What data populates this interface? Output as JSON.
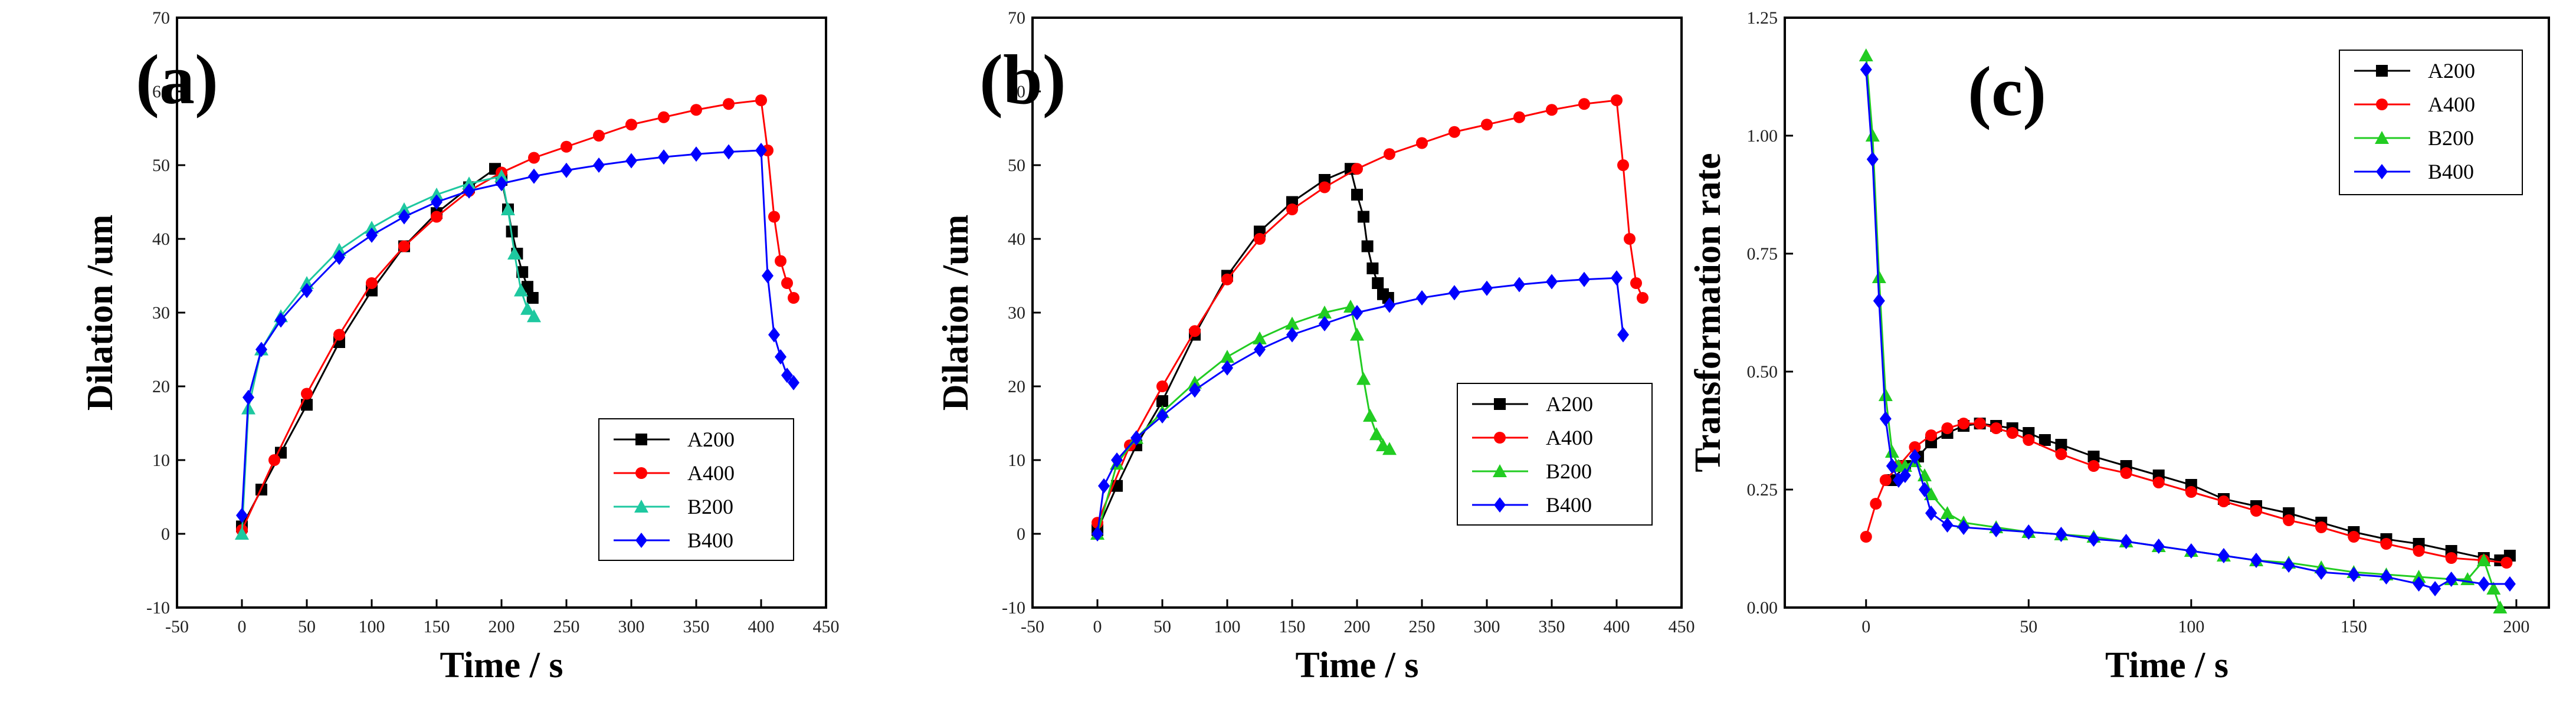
{
  "chart_data": [
    {
      "type": "line",
      "panel_label": "(a)",
      "xlabel": "Time / s",
      "ylabel": "Dilation /um",
      "xlim": [
        -50,
        450
      ],
      "ylim": [
        -10,
        70
      ],
      "xticks": [
        "-50",
        "0",
        "50",
        "100",
        "150",
        "200",
        "250",
        "300",
        "350",
        "400",
        "450"
      ],
      "yticks": [
        "-10",
        "0",
        "10",
        "20",
        "30",
        "40",
        "50",
        "60",
        "70"
      ],
      "legend_position": "bottom-right",
      "series": [
        {
          "name": "A200",
          "color": "#000000",
          "marker": "square",
          "x": [
            0,
            15,
            30,
            50,
            75,
            100,
            125,
            150,
            175,
            195,
            200,
            205,
            208,
            212,
            216,
            220,
            224
          ],
          "y": [
            1,
            6,
            11,
            17.5,
            26,
            33,
            39,
            43.5,
            47,
            49.5,
            48,
            44,
            41,
            38,
            35.5,
            33.5,
            32
          ]
        },
        {
          "name": "A400",
          "color": "#ff0000",
          "marker": "circle",
          "x": [
            0,
            25,
            50,
            75,
            100,
            125,
            150,
            175,
            200,
            225,
            250,
            275,
            300,
            325,
            350,
            375,
            400,
            405,
            410,
            415,
            420,
            425
          ],
          "y": [
            0.5,
            10,
            19,
            27,
            34,
            39,
            43,
            46.5,
            49,
            51,
            52.5,
            54,
            55.5,
            56.5,
            57.5,
            58.3,
            58.8,
            52,
            43,
            37,
            34,
            32
          ]
        },
        {
          "name": "B200",
          "color": "#1ec8a0",
          "marker": "triangle",
          "x": [
            0,
            5,
            15,
            30,
            50,
            75,
            100,
            125,
            150,
            175,
            200,
            205,
            210,
            215,
            220,
            225
          ],
          "y": [
            0,
            17,
            25,
            29.5,
            34,
            38.5,
            41.5,
            44,
            46,
            47.5,
            48.5,
            44,
            38,
            33,
            30.5,
            29.5
          ]
        },
        {
          "name": "B400",
          "color": "#0000ff",
          "marker": "diamond",
          "x": [
            0,
            5,
            15,
            30,
            50,
            75,
            100,
            125,
            150,
            175,
            200,
            225,
            250,
            275,
            300,
            325,
            350,
            375,
            400,
            405,
            410,
            415,
            420,
            425
          ],
          "y": [
            2.5,
            18.5,
            25,
            29,
            33,
            37.5,
            40.5,
            43,
            45,
            46.5,
            47.5,
            48.5,
            49.3,
            50,
            50.6,
            51.1,
            51.5,
            51.8,
            52,
            35,
            27,
            24,
            21.5,
            20.5
          ]
        }
      ]
    },
    {
      "type": "line",
      "panel_label": "(b)",
      "xlabel": "Time / s",
      "ylabel": "Dilation /um",
      "xlim": [
        -50,
        450
      ],
      "ylim": [
        -10,
        70
      ],
      "xticks": [
        "-50",
        "0",
        "50",
        "100",
        "150",
        "200",
        "250",
        "300",
        "350",
        "400",
        "450"
      ],
      "yticks": [
        "-10",
        "0",
        "10",
        "20",
        "30",
        "40",
        "50",
        "60",
        "70"
      ],
      "legend_position": "bottom-right",
      "series": [
        {
          "name": "A200",
          "color": "#000000",
          "marker": "square",
          "x": [
            0,
            15,
            30,
            50,
            75,
            100,
            125,
            150,
            175,
            195,
            200,
            205,
            208,
            212,
            216,
            220,
            224
          ],
          "y": [
            0.5,
            6.5,
            12,
            18,
            27,
            35,
            41,
            45,
            48,
            49.5,
            46,
            43,
            39,
            36,
            34,
            32.5,
            32
          ]
        },
        {
          "name": "A400",
          "color": "#ff0000",
          "marker": "circle",
          "x": [
            0,
            25,
            50,
            75,
            100,
            125,
            150,
            175,
            200,
            225,
            250,
            275,
            300,
            325,
            350,
            375,
            400,
            405,
            410,
            415,
            420
          ],
          "y": [
            1.5,
            12,
            20,
            27.5,
            34.5,
            40,
            44,
            47,
            49.5,
            51.5,
            53,
            54.5,
            55.5,
            56.5,
            57.5,
            58.3,
            58.8,
            50,
            40,
            34,
            32
          ]
        },
        {
          "name": "B200",
          "color": "#22cc22",
          "marker": "triangle",
          "x": [
            0,
            15,
            30,
            50,
            75,
            100,
            125,
            150,
            175,
            195,
            200,
            205,
            210,
            215,
            220,
            225
          ],
          "y": [
            0,
            9.5,
            13,
            16.5,
            20.5,
            24,
            26.5,
            28.5,
            30,
            30.8,
            27,
            21,
            16,
            13.5,
            12,
            11.5
          ]
        },
        {
          "name": "B400",
          "color": "#0000ff",
          "marker": "diamond",
          "x": [
            0,
            5,
            15,
            30,
            50,
            75,
            100,
            125,
            150,
            175,
            200,
            225,
            250,
            275,
            300,
            325,
            350,
            375,
            400,
            405
          ],
          "y": [
            0,
            6.5,
            10,
            13,
            16,
            19.5,
            22.5,
            25,
            27,
            28.5,
            30,
            31,
            32,
            32.7,
            33.3,
            33.8,
            34.2,
            34.5,
            34.7,
            27
          ]
        }
      ]
    },
    {
      "type": "line",
      "panel_label": "(c)",
      "xlabel": "Time / s",
      "ylabel": "Transformation rate",
      "xlim": [
        -25,
        210
      ],
      "ylim": [
        0,
        1.25
      ],
      "xticks": [
        "0",
        "50",
        "100",
        "150",
        "200"
      ],
      "yticks": [
        "0.00",
        "0.25",
        "0.50",
        "0.75",
        "1.00",
        "1.25"
      ],
      "legend_position": "top-right",
      "series": [
        {
          "name": "A200",
          "color": "#000000",
          "marker": "square",
          "x": [
            8,
            12,
            16,
            20,
            25,
            30,
            35,
            40,
            45,
            50,
            55,
            60,
            70,
            80,
            90,
            100,
            110,
            120,
            130,
            140,
            150,
            160,
            170,
            180,
            190,
            195,
            198
          ],
          "y": [
            0.27,
            0.3,
            0.32,
            0.35,
            0.37,
            0.385,
            0.39,
            0.385,
            0.38,
            0.37,
            0.355,
            0.345,
            0.32,
            0.3,
            0.28,
            0.26,
            0.23,
            0.215,
            0.2,
            0.18,
            0.16,
            0.145,
            0.135,
            0.12,
            0.105,
            0.1,
            0.11
          ]
        },
        {
          "name": "A400",
          "color": "#ff0000",
          "marker": "circle",
          "x": [
            0,
            3,
            6,
            10,
            15,
            20,
            25,
            30,
            35,
            40,
            45,
            50,
            60,
            70,
            80,
            90,
            100,
            110,
            120,
            130,
            140,
            150,
            160,
            170,
            180,
            190,
            197
          ],
          "y": [
            0.15,
            0.22,
            0.27,
            0.3,
            0.34,
            0.365,
            0.38,
            0.39,
            0.39,
            0.38,
            0.37,
            0.355,
            0.325,
            0.3,
            0.285,
            0.265,
            0.245,
            0.225,
            0.205,
            0.185,
            0.17,
            0.15,
            0.135,
            0.12,
            0.105,
            0.1,
            0.095
          ]
        },
        {
          "name": "B200",
          "color": "#22cc22",
          "marker": "triangle",
          "x": [
            0,
            2,
            4,
            6,
            8,
            10,
            12,
            15,
            18,
            20,
            25,
            30,
            40,
            50,
            60,
            70,
            80,
            90,
            100,
            110,
            120,
            130,
            140,
            150,
            160,
            170,
            180,
            185,
            190,
            193,
            195
          ],
          "y": [
            1.17,
            1.0,
            0.7,
            0.45,
            0.33,
            0.3,
            0.3,
            0.31,
            0.28,
            0.24,
            0.2,
            0.18,
            0.17,
            0.16,
            0.155,
            0.15,
            0.14,
            0.13,
            0.12,
            0.11,
            0.1,
            0.095,
            0.085,
            0.075,
            0.07,
            0.065,
            0.06,
            0.06,
            0.1,
            0.04,
            0.0
          ]
        },
        {
          "name": "B400",
          "color": "#0000ff",
          "marker": "diamond",
          "x": [
            0,
            2,
            4,
            6,
            8,
            10,
            12,
            15,
            18,
            20,
            25,
            30,
            40,
            50,
            60,
            70,
            80,
            90,
            100,
            110,
            120,
            130,
            140,
            150,
            160,
            170,
            175,
            180,
            190,
            198
          ],
          "y": [
            1.14,
            0.95,
            0.65,
            0.4,
            0.3,
            0.27,
            0.28,
            0.32,
            0.25,
            0.2,
            0.175,
            0.17,
            0.165,
            0.16,
            0.155,
            0.145,
            0.14,
            0.13,
            0.12,
            0.11,
            0.1,
            0.09,
            0.075,
            0.07,
            0.065,
            0.05,
            0.04,
            0.06,
            0.05,
            0.05
          ]
        }
      ]
    }
  ]
}
